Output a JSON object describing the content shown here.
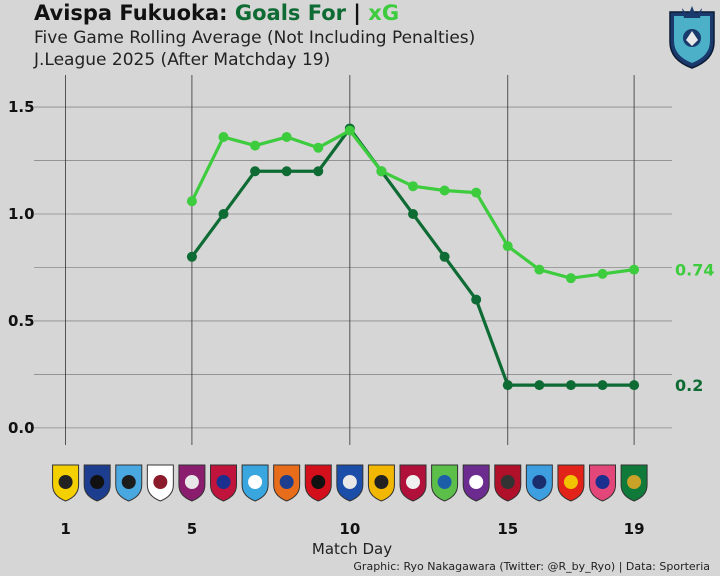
{
  "header": {
    "title_team": "Avispa Fukuoka:",
    "title_goals": "Goals For",
    "title_sep": "|",
    "title_xg": "xG",
    "subtitle1": "Five Game Rolling Average (Not Including Penalties)",
    "subtitle2": "J.League 2025 (After Matchday 19)"
  },
  "credit": "Graphic: Ryo Nakagawara (Twitter: @R_by_Ryo) | Data: Sporteria",
  "colors": {
    "goals": "#0f6b34",
    "xg": "#3dcc3d",
    "background": "#d6d6d6"
  },
  "opponent_badges": [
    {
      "matchday": 1,
      "icon": "kashiwa-badge-icon",
      "colors": [
        "#f5d000",
        "#222222"
      ]
    },
    {
      "matchday": 2,
      "icon": "gamba-badge-icon",
      "colors": [
        "#1d3d8f",
        "#111111"
      ]
    },
    {
      "matchday": 3,
      "icon": "kawasaki-badge-icon",
      "colors": [
        "#4aa8e0",
        "#1c1c1c"
      ]
    },
    {
      "matchday": 4,
      "icon": "kobe-badge-icon",
      "colors": [
        "#ffffff",
        "#8b1a2b"
      ]
    },
    {
      "matchday": 5,
      "icon": "kyoto-badge-icon",
      "colors": [
        "#8a1d6e",
        "#e8e8e8"
      ]
    },
    {
      "matchday": 6,
      "icon": "fctokyo-badge-icon",
      "colors": [
        "#c0143c",
        "#1b2f8f"
      ]
    },
    {
      "matchday": 7,
      "icon": "yokohamafc-badge-icon",
      "colors": [
        "#3aa6e0",
        "#ffffff"
      ]
    },
    {
      "matchday": 8,
      "icon": "shimizu-badge-icon",
      "colors": [
        "#e86d1a",
        "#1d3d8f"
      ]
    },
    {
      "matchday": 9,
      "icon": "urawa-badge-icon",
      "colors": [
        "#d40f1c",
        "#111111"
      ]
    },
    {
      "matchday": 10,
      "icon": "yokohamafm-badge-icon",
      "colors": [
        "#1a4ea8",
        "#e8e8e8"
      ]
    },
    {
      "matchday": 11,
      "icon": "kashiwa-reysol-badge-icon",
      "colors": [
        "#f2b700",
        "#222222"
      ]
    },
    {
      "matchday": 12,
      "icon": "okayama-badge-icon",
      "colors": [
        "#b0103a",
        "#f0f0f0"
      ]
    },
    {
      "matchday": 13,
      "icon": "shonan-badge-icon",
      "colors": [
        "#5bbf4a",
        "#1c5fa8"
      ]
    },
    {
      "matchday": 14,
      "icon": "hiroshima-badge-icon",
      "colors": [
        "#6b2b8f",
        "#ffffff"
      ]
    },
    {
      "matchday": 15,
      "icon": "kashima-badge-icon",
      "colors": [
        "#b0102a",
        "#333333"
      ]
    },
    {
      "matchday": 16,
      "icon": "yokohama-badge-icon",
      "colors": [
        "#3d9fe0",
        "#1a2e6e"
      ]
    },
    {
      "matchday": 17,
      "icon": "nagoya-badge-icon",
      "colors": [
        "#e2231a",
        "#f2c300"
      ]
    },
    {
      "matchday": 18,
      "icon": "cerezo-badge-icon",
      "colors": [
        "#e3477a",
        "#1b2f8f"
      ]
    },
    {
      "matchday": 19,
      "icon": "tokyoverdy-badge-icon",
      "colors": [
        "#0f7a3a",
        "#c9a227"
      ]
    }
  ],
  "chart_data": {
    "type": "line",
    "xlabel": "Match Day",
    "ylabel": "",
    "x_ticks": [
      1,
      5,
      10,
      15,
      19
    ],
    "y_ticks": [
      "0.0",
      "0.5",
      "1.0",
      "1.5"
    ],
    "xlim": [
      0,
      20.2
    ],
    "ylim": [
      -0.08,
      1.65
    ],
    "grid": true,
    "series": [
      {
        "name": "Goals For",
        "color": "#0f6b34",
        "x": [
          5,
          6,
          7,
          8,
          9,
          10,
          11,
          12,
          13,
          14,
          15,
          16,
          17,
          18,
          19
        ],
        "y": [
          0.8,
          1.0,
          1.2,
          1.2,
          1.2,
          1.4,
          1.2,
          1.0,
          0.8,
          0.6,
          0.2,
          0.2,
          0.2,
          0.2,
          0.2
        ],
        "end_label": "0.2"
      },
      {
        "name": "xG",
        "color": "#3dcc3d",
        "x": [
          5,
          6,
          7,
          8,
          9,
          10,
          11,
          12,
          13,
          14,
          15,
          16,
          17,
          18,
          19
        ],
        "y": [
          1.06,
          1.36,
          1.32,
          1.36,
          1.31,
          1.39,
          1.2,
          1.13,
          1.11,
          1.1,
          0.85,
          0.74,
          0.7,
          0.72,
          0.74
        ],
        "end_label": "0.74"
      }
    ]
  }
}
